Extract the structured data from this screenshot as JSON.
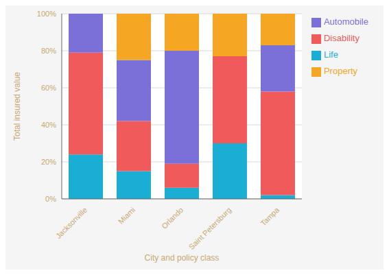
{
  "chart_data": {
    "type": "bar",
    "stacked": true,
    "xlabel": "City and policy class",
    "ylabel": "Total insured value",
    "categories": [
      "Jacksonville",
      "Miami",
      "Orlando",
      "Saint Petersburg",
      "Tampa"
    ],
    "series": [
      {
        "name": "Life",
        "color": "#1BAED4",
        "values": [
          24,
          15,
          6,
          30,
          2
        ]
      },
      {
        "name": "Disability",
        "color": "#F05A5A",
        "values": [
          55,
          27,
          13,
          47,
          56
        ]
      },
      {
        "name": "Automobile",
        "color": "#7B70D8",
        "values": [
          21,
          33,
          61,
          0,
          25
        ]
      },
      {
        "name": "Property",
        "color": "#F5A623",
        "values": [
          0,
          25,
          20,
          23,
          17
        ]
      }
    ],
    "ylim": [
      0,
      100
    ],
    "yticks": [
      {
        "value": 0,
        "label": "0%"
      },
      {
        "value": 20,
        "label": "20%"
      },
      {
        "value": 40,
        "label": "40%"
      },
      {
        "value": 60,
        "label": "60%"
      },
      {
        "value": 80,
        "label": "80%"
      },
      {
        "value": 100,
        "label": "100%"
      }
    ],
    "grid": true,
    "legend": "right"
  }
}
